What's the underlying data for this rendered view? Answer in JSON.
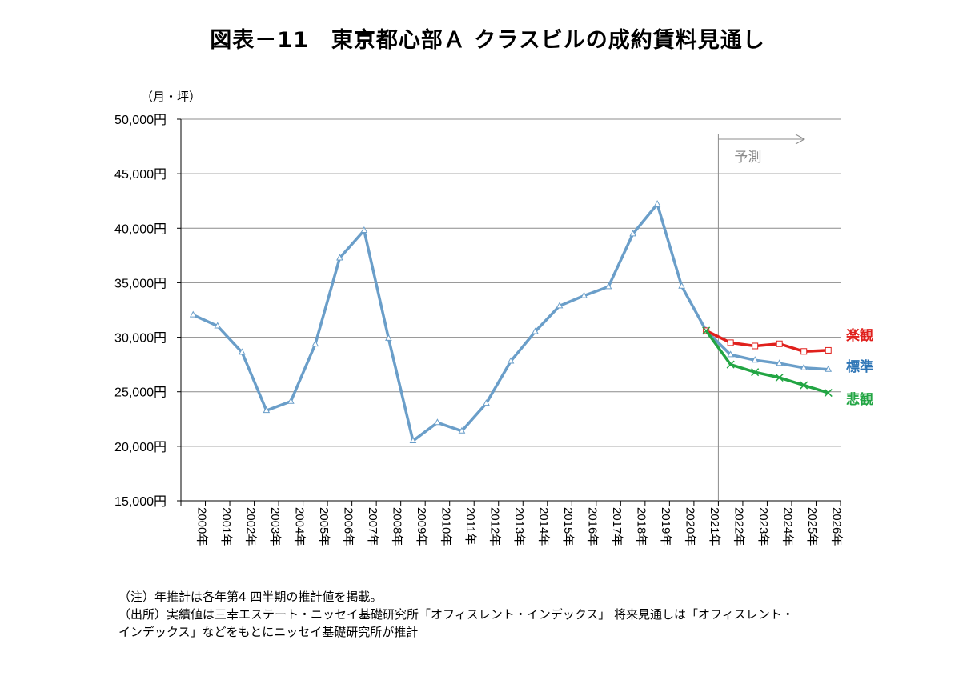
{
  "title": "図表－11　東京都心部Ａ クラスビルの成約賃料見通し",
  "notes": [
    "（注）年推計は各年第4 四半期の推計値を掲載。",
    "（出所）実績値は三幸エステート・ニッセイ基礎研究所「オフィスレント・インデックス」 将来見通しは「オフィスレント・",
    "インデックス」などをもとにニッセイ基礎研究所が推計"
  ],
  "chart_data": {
    "type": "line",
    "unit_label": "（月・坪）",
    "ylim": [
      15000,
      50000
    ],
    "yticks": [
      15000,
      20000,
      25000,
      30000,
      35000,
      40000,
      45000,
      50000
    ],
    "ytick_labels": [
      "15,000円",
      "20,000円",
      "25,000円",
      "30,000円",
      "35,000円",
      "40,000円",
      "45,000円",
      "50,000円"
    ],
    "categories": [
      "2000年",
      "2001年",
      "2002年",
      "2003年",
      "2004年",
      "2005年",
      "2006年",
      "2007年",
      "2008年",
      "2009年",
      "2010年",
      "2011年",
      "2012年",
      "2013年",
      "2014年",
      "2015年",
      "2016年",
      "2017年",
      "2018年",
      "2019年",
      "2020年",
      "2021年",
      "2022年",
      "2023年",
      "2024年",
      "2025年",
      "2026年"
    ],
    "forecast_label": "予測",
    "forecast_start": "2021年",
    "grid": true,
    "series": [
      {
        "name": "標準",
        "color": "#6a9ec9",
        "label_color": "#2e75b6",
        "marker": "triangle",
        "values": [
          32050,
          31030,
          28620,
          23280,
          24120,
          29370,
          37270,
          39800,
          29900,
          20500,
          22170,
          21400,
          23940,
          27800,
          30520,
          32880,
          33810,
          34640,
          39480,
          42210,
          34680,
          30600,
          28400,
          27900,
          27600,
          27200,
          27050
        ]
      },
      {
        "name": "楽観",
        "color": "#e0201c",
        "label_color": "#e0201c",
        "marker": "square",
        "values": [
          null,
          null,
          null,
          null,
          null,
          null,
          null,
          null,
          null,
          null,
          null,
          null,
          null,
          null,
          null,
          null,
          null,
          null,
          null,
          null,
          null,
          30600,
          29500,
          29200,
          29400,
          28700,
          28800
        ]
      },
      {
        "name": "悲観",
        "color": "#22a543",
        "label_color": "#22a543",
        "marker": "x",
        "values": [
          null,
          null,
          null,
          null,
          null,
          null,
          null,
          null,
          null,
          null,
          null,
          null,
          null,
          null,
          null,
          null,
          null,
          null,
          null,
          null,
          null,
          30600,
          27500,
          26800,
          26300,
          25600,
          24900
        ]
      }
    ]
  }
}
